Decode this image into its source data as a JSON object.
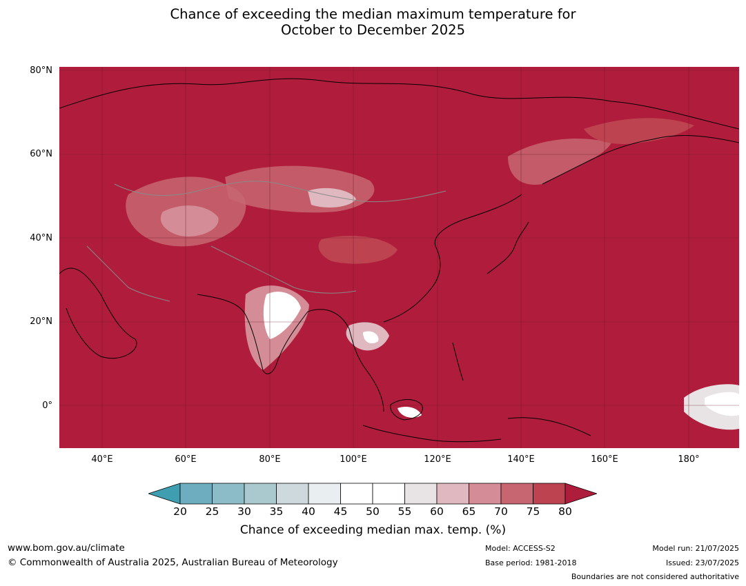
{
  "title": {
    "line1": "Chance of exceeding the median maximum temperature for",
    "line2": "October to December 2025"
  },
  "map": {
    "background_color": "#b01c3b",
    "lat_labels": [
      "80°N",
      "60°N",
      "40°N",
      "20°N",
      "0°"
    ],
    "lon_labels": [
      "40°E",
      "60°E",
      "80°E",
      "100°E",
      "120°E",
      "140°E",
      "160°E",
      "180°"
    ]
  },
  "colorbar": {
    "ticks": [
      "20",
      "25",
      "30",
      "35",
      "40",
      "45",
      "50",
      "55",
      "60",
      "65",
      "70",
      "75",
      "80"
    ],
    "colors": [
      "#3f9fb0",
      "#6eadbf",
      "#8bbcc8",
      "#aac9cf",
      "#cdd9dc",
      "#e9eff0",
      "#ffffff",
      "#ffffff",
      "#e8e3e5",
      "#dfb9bf",
      "#d48d96",
      "#c76671",
      "#bc434f",
      "#ae1d3c"
    ],
    "label": "Chance of exceeding median max. temp. (%)"
  },
  "footer": {
    "website": "www.bom.gov.au/climate",
    "copyright": "© Commonwealth of Australia 2025, Australian Bureau of Meteorology",
    "model": "Model: ACCESS-S2",
    "base_period": "Base period: 1981-2018",
    "model_run": "Model run: 21/07/2025",
    "issued": "Issued: 23/07/2025",
    "boundaries_note": "Boundaries are not considered authoritative"
  }
}
